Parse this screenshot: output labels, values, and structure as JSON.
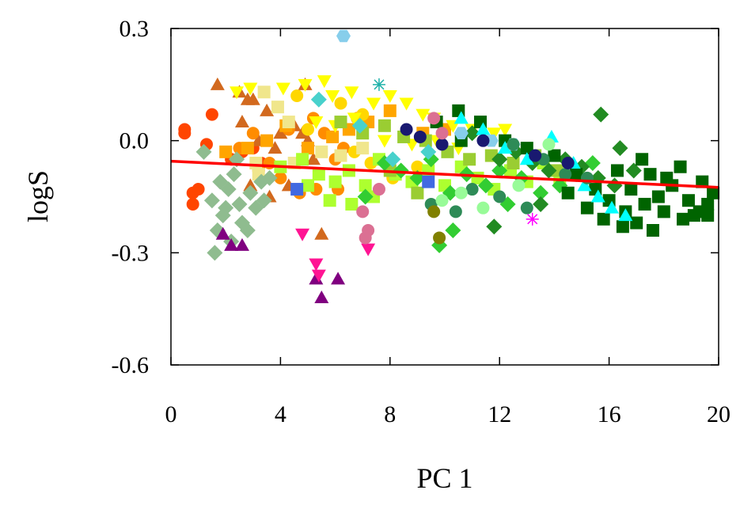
{
  "chart_data": {
    "type": "scatter",
    "xlabel": "PC 1",
    "ylabel": "logS",
    "xlim": [
      0,
      20
    ],
    "ylim": [
      -0.6,
      0.3
    ],
    "x_ticks": [
      "0",
      "4",
      "8",
      "12",
      "16",
      "20"
    ],
    "y_ticks": [
      "0.3",
      "0.0",
      "-0.3",
      "-0.6"
    ],
    "grid": false,
    "legend": "none",
    "trend_line": {
      "color": "#ff0000",
      "points": [
        [
          0,
          -0.055
        ],
        [
          20,
          -0.125
        ]
      ]
    },
    "series": [
      {
        "color": "#ff4500",
        "marker": "circle",
        "points": [
          [
            0.5,
            0.03
          ],
          [
            0.5,
            0.02
          ],
          [
            0.8,
            -0.14
          ],
          [
            1.0,
            -0.13
          ],
          [
            0.8,
            -0.17
          ],
          [
            1.5,
            0.07
          ],
          [
            1.3,
            -0.01
          ],
          [
            2.2,
            -0.05
          ],
          [
            2.6,
            -0.03
          ],
          [
            3.0,
            -0.02
          ],
          [
            3.3,
            -0.06
          ]
        ]
      },
      {
        "color": "#d2691e",
        "marker": "triangle-up",
        "points": [
          [
            1.7,
            0.15
          ],
          [
            2.5,
            0.13
          ],
          [
            2.8,
            0.11
          ],
          [
            2.6,
            0.05
          ],
          [
            3.0,
            0.11
          ],
          [
            3.5,
            0.08
          ],
          [
            3.2,
            0.0
          ],
          [
            3.8,
            -0.02
          ],
          [
            4.0,
            0.02
          ],
          [
            4.5,
            0.04
          ],
          [
            4.8,
            0.02
          ],
          [
            3.6,
            -0.15
          ],
          [
            4.3,
            -0.12
          ],
          [
            5.0,
            0.0
          ],
          [
            5.2,
            -0.05
          ],
          [
            5.5,
            -0.25
          ],
          [
            4.9,
            0.15
          ],
          [
            2.9,
            -0.12
          ]
        ]
      },
      {
        "color": "#ff8c00",
        "marker": "circle",
        "points": [
          [
            2.5,
            -0.02
          ],
          [
            3.0,
            0.02
          ],
          [
            3.6,
            -0.06
          ],
          [
            4.3,
            0.03
          ],
          [
            5.2,
            0.06
          ],
          [
            5.6,
            0.02
          ],
          [
            6.0,
            -0.05
          ],
          [
            6.3,
            -0.02
          ],
          [
            6.8,
            0.06
          ],
          [
            4.0,
            -0.1
          ],
          [
            4.7,
            -0.14
          ],
          [
            5.3,
            -0.13
          ],
          [
            6.1,
            -0.13
          ],
          [
            3.2,
            -0.08
          ]
        ]
      },
      {
        "color": "#ffa500",
        "marker": "square",
        "points": [
          [
            2.0,
            -0.03
          ],
          [
            2.8,
            -0.02
          ],
          [
            3.5,
            0.0
          ],
          [
            4.2,
            0.04
          ],
          [
            5.0,
            -0.02
          ],
          [
            5.9,
            0.01
          ],
          [
            6.5,
            0.03
          ],
          [
            7.2,
            0.05
          ],
          [
            8.0,
            0.08
          ],
          [
            9.2,
            0.02
          ],
          [
            10.0,
            0.03
          ]
        ]
      },
      {
        "color": "#ffd700",
        "marker": "circle",
        "points": [
          [
            4.6,
            0.12
          ],
          [
            5.0,
            0.03
          ],
          [
            6.2,
            0.1
          ],
          [
            6.7,
            -0.03
          ],
          [
            7.3,
            -0.06
          ],
          [
            8.1,
            -0.1
          ],
          [
            9.0,
            -0.07
          ],
          [
            7.0,
            0.07
          ]
        ]
      },
      {
        "color": "#ffff00",
        "marker": "triangle-down",
        "points": [
          [
            2.4,
            0.13
          ],
          [
            2.9,
            0.14
          ],
          [
            4.1,
            0.14
          ],
          [
            4.9,
            0.15
          ],
          [
            5.6,
            0.16
          ],
          [
            5.9,
            0.12
          ],
          [
            6.6,
            0.13
          ],
          [
            7.4,
            0.1
          ],
          [
            8.0,
            0.12
          ],
          [
            8.6,
            0.1
          ],
          [
            9.2,
            0.07
          ],
          [
            9.6,
            0.06
          ],
          [
            10.3,
            0.04
          ],
          [
            11.0,
            0.03
          ],
          [
            11.8,
            0.02
          ],
          [
            12.2,
            0.03
          ],
          [
            5.3,
            0.05
          ],
          [
            6.0,
            0.04
          ],
          [
            6.7,
            0.06
          ],
          [
            7.8,
            0.0
          ],
          [
            8.8,
            -0.01
          ],
          [
            9.7,
            0.0
          ],
          [
            10.5,
            -0.02
          ]
        ]
      },
      {
        "color": "#f0e68c",
        "marker": "square",
        "points": [
          [
            3.4,
            0.13
          ],
          [
            3.9,
            0.09
          ],
          [
            4.3,
            0.05
          ],
          [
            3.1,
            -0.06
          ],
          [
            3.2,
            -0.09
          ],
          [
            4.5,
            -0.06
          ],
          [
            5.5,
            -0.03
          ],
          [
            6.2,
            -0.04
          ],
          [
            7.0,
            -0.02
          ]
        ]
      },
      {
        "color": "#adff2f",
        "marker": "square",
        "points": [
          [
            4.0,
            -0.07
          ],
          [
            4.8,
            -0.05
          ],
          [
            5.4,
            -0.09
          ],
          [
            6.0,
            -0.11
          ],
          [
            6.5,
            -0.08
          ],
          [
            7.1,
            -0.12
          ],
          [
            7.6,
            -0.05
          ],
          [
            8.2,
            -0.09
          ],
          [
            8.8,
            -0.11
          ],
          [
            9.4,
            -0.08
          ],
          [
            10.0,
            -0.12
          ],
          [
            10.6,
            -0.07
          ],
          [
            11.2,
            -0.1
          ],
          [
            11.8,
            -0.13
          ],
          [
            12.4,
            -0.08
          ],
          [
            13.0,
            -0.11
          ],
          [
            13.6,
            -0.06
          ],
          [
            14.2,
            -0.1
          ],
          [
            5.0,
            -0.12
          ],
          [
            5.8,
            -0.16
          ],
          [
            6.6,
            -0.17
          ],
          [
            7.4,
            -0.15
          ]
        ]
      },
      {
        "color": "#9acd32",
        "marker": "square",
        "points": [
          [
            6.2,
            0.05
          ],
          [
            7.0,
            0.02
          ],
          [
            7.8,
            0.04
          ],
          [
            8.5,
            0.01
          ],
          [
            9.3,
            0.0
          ],
          [
            10.1,
            -0.03
          ],
          [
            10.9,
            -0.05
          ],
          [
            11.7,
            -0.04
          ],
          [
            12.5,
            -0.06
          ],
          [
            13.3,
            -0.04
          ],
          [
            14.1,
            -0.08
          ],
          [
            8.0,
            -0.08
          ],
          [
            9.0,
            -0.14
          ]
        ]
      },
      {
        "color": "#32cd32",
        "marker": "diamond",
        "points": [
          [
            7.1,
            -0.15
          ],
          [
            7.8,
            -0.06
          ],
          [
            8.4,
            -0.08
          ],
          [
            9.0,
            -0.1
          ],
          [
            9.5,
            -0.05
          ],
          [
            10.2,
            -0.14
          ],
          [
            10.8,
            -0.09
          ],
          [
            11.5,
            -0.12
          ],
          [
            12.0,
            -0.08
          ],
          [
            12.8,
            -0.1
          ],
          [
            13.5,
            -0.14
          ],
          [
            14.2,
            -0.12
          ],
          [
            14.8,
            -0.09
          ],
          [
            15.4,
            -0.06
          ],
          [
            9.8,
            -0.28
          ],
          [
            10.3,
            -0.24
          ],
          [
            12.3,
            -0.17
          ]
        ]
      },
      {
        "color": "#228b22",
        "marker": "diamond",
        "points": [
          [
            11.0,
            0.02
          ],
          [
            12.0,
            -0.05
          ],
          [
            12.6,
            -0.03
          ],
          [
            13.2,
            -0.06
          ],
          [
            13.8,
            -0.08
          ],
          [
            14.4,
            -0.05
          ],
          [
            15.0,
            -0.07
          ],
          [
            15.6,
            -0.1
          ],
          [
            16.2,
            -0.12
          ],
          [
            16.9,
            -0.08
          ],
          [
            15.7,
            0.07
          ],
          [
            16.4,
            -0.02
          ],
          [
            11.8,
            -0.23
          ],
          [
            13.5,
            -0.17
          ]
        ]
      },
      {
        "color": "#006400",
        "marker": "square",
        "points": [
          [
            10.5,
            0.08
          ],
          [
            11.3,
            0.05
          ],
          [
            12.2,
            0.0
          ],
          [
            13.0,
            -0.02
          ],
          [
            14.0,
            -0.04
          ],
          [
            14.8,
            -0.09
          ],
          [
            15.5,
            -0.13
          ],
          [
            16.0,
            -0.16
          ],
          [
            16.3,
            -0.08
          ],
          [
            16.8,
            -0.13
          ],
          [
            17.2,
            -0.05
          ],
          [
            17.5,
            -0.09
          ],
          [
            17.8,
            -0.15
          ],
          [
            18.0,
            -0.19
          ],
          [
            18.3,
            -0.12
          ],
          [
            18.6,
            -0.07
          ],
          [
            18.9,
            -0.16
          ],
          [
            19.1,
            -0.2
          ],
          [
            19.4,
            -0.11
          ],
          [
            19.6,
            -0.17
          ],
          [
            19.8,
            -0.14
          ],
          [
            17.0,
            -0.22
          ],
          [
            16.5,
            -0.23
          ],
          [
            15.2,
            -0.18
          ],
          [
            17.6,
            -0.24
          ],
          [
            18.7,
            -0.21
          ],
          [
            19.3,
            -0.19
          ],
          [
            14.5,
            -0.14
          ],
          [
            15.8,
            -0.21
          ],
          [
            17.3,
            -0.17
          ],
          [
            18.1,
            -0.1
          ],
          [
            19.6,
            -0.2
          ],
          [
            16.6,
            -0.19
          ],
          [
            9.7,
            0.05
          ],
          [
            10.6,
            0.0
          ]
        ]
      },
      {
        "color": "#00ffff",
        "marker": "triangle-up",
        "points": [
          [
            10.6,
            0.06
          ],
          [
            11.4,
            0.03
          ],
          [
            12.2,
            -0.02
          ],
          [
            13.0,
            -0.05
          ],
          [
            13.9,
            0.01
          ],
          [
            14.7,
            -0.06
          ],
          [
            15.1,
            -0.12
          ],
          [
            15.6,
            -0.15
          ],
          [
            16.1,
            -0.18
          ],
          [
            16.6,
            -0.2
          ]
        ]
      },
      {
        "color": "#87ceeb",
        "marker": "hexagon",
        "points": [
          [
            6.3,
            0.28
          ],
          [
            10.6,
            0.02
          ],
          [
            11.7,
            0.0
          ],
          [
            12.5,
            -0.01
          ]
        ]
      },
      {
        "color": "#48d1cc",
        "marker": "diamond",
        "points": [
          [
            5.4,
            0.11
          ],
          [
            6.9,
            0.04
          ],
          [
            8.1,
            -0.05
          ],
          [
            9.4,
            -0.03
          ]
        ]
      },
      {
        "color": "#2e8b57",
        "marker": "circle",
        "points": [
          [
            12.5,
            -0.01
          ],
          [
            13.6,
            -0.05
          ],
          [
            14.4,
            -0.09
          ],
          [
            15.2,
            -0.1
          ],
          [
            11.0,
            -0.13
          ],
          [
            12.0,
            -0.15
          ],
          [
            13.0,
            -0.18
          ],
          [
            9.5,
            -0.17
          ],
          [
            10.4,
            -0.19
          ]
        ]
      },
      {
        "color": "#98fb98",
        "marker": "circle",
        "points": [
          [
            9.9,
            -0.16
          ],
          [
            10.6,
            -0.14
          ],
          [
            11.4,
            -0.18
          ],
          [
            12.7,
            -0.12
          ],
          [
            13.8,
            -0.01
          ]
        ]
      },
      {
        "color": "#8fbc8f",
        "marker": "diamond",
        "points": [
          [
            1.2,
            -0.03
          ],
          [
            1.5,
            -0.16
          ],
          [
            1.7,
            -0.24
          ],
          [
            1.6,
            -0.3
          ],
          [
            1.9,
            -0.2
          ],
          [
            2.1,
            -0.13
          ],
          [
            2.2,
            -0.27
          ],
          [
            2.3,
            -0.09
          ],
          [
            2.5,
            -0.17
          ],
          [
            2.6,
            -0.22
          ],
          [
            2.8,
            -0.24
          ],
          [
            2.9,
            -0.14
          ],
          [
            3.1,
            -0.18
          ],
          [
            3.3,
            -0.11
          ],
          [
            3.4,
            -0.16
          ],
          [
            1.8,
            -0.11
          ],
          [
            2.0,
            -0.18
          ],
          [
            2.4,
            -0.05
          ],
          [
            3.6,
            -0.1
          ]
        ]
      },
      {
        "color": "#191970",
        "marker": "circle",
        "points": [
          [
            8.6,
            0.03
          ],
          [
            9.1,
            0.01
          ],
          [
            9.9,
            -0.01
          ],
          [
            11.4,
            0.0
          ],
          [
            13.3,
            -0.04
          ],
          [
            14.5,
            -0.06
          ]
        ]
      },
      {
        "color": "#800080",
        "marker": "triangle-up",
        "points": [
          [
            1.9,
            -0.25
          ],
          [
            2.2,
            -0.28
          ],
          [
            2.6,
            -0.28
          ],
          [
            5.3,
            -0.37
          ],
          [
            5.5,
            -0.42
          ],
          [
            6.1,
            -0.37
          ]
        ]
      },
      {
        "color": "#ff1493",
        "marker": "triangle-down",
        "points": [
          [
            4.8,
            -0.25
          ],
          [
            5.3,
            -0.33
          ],
          [
            5.4,
            -0.36
          ],
          [
            7.2,
            -0.29
          ]
        ]
      },
      {
        "color": "#db7093",
        "marker": "circle",
        "points": [
          [
            7.0,
            -0.19
          ],
          [
            7.2,
            -0.24
          ],
          [
            7.1,
            -0.26
          ],
          [
            7.6,
            -0.13
          ],
          [
            9.6,
            0.06
          ],
          [
            9.9,
            0.02
          ]
        ]
      },
      {
        "color": "#4169e1",
        "marker": "square",
        "points": [
          [
            4.6,
            -0.13
          ],
          [
            9.4,
            -0.11
          ]
        ]
      },
      {
        "color": "#808000",
        "marker": "circle",
        "points": [
          [
            9.8,
            -0.26
          ],
          [
            9.6,
            -0.19
          ]
        ]
      },
      {
        "color": "#20b2aa",
        "marker": "asterisk",
        "points": [
          [
            7.6,
            0.15
          ]
        ]
      },
      {
        "color": "#ff00ff",
        "marker": "asterisk",
        "points": [
          [
            13.2,
            -0.21
          ]
        ]
      }
    ]
  }
}
